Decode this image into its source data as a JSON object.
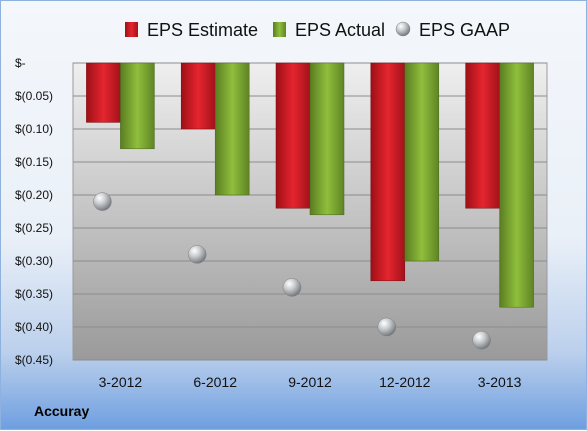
{
  "company_label": "Accuray",
  "chart_data": {
    "type": "bar",
    "categories": [
      "3-2012",
      "6-2012",
      "9-2012",
      "12-2012",
      "3-2013"
    ],
    "series": [
      {
        "name": "EPS Estimate",
        "type": "bar",
        "color": "#d7202a",
        "values": [
          -0.09,
          -0.1,
          -0.22,
          -0.33,
          -0.22
        ]
      },
      {
        "name": "EPS Actual",
        "type": "bar",
        "color": "#7fa733",
        "values": [
          -0.13,
          -0.2,
          -0.23,
          -0.3,
          -0.37
        ]
      },
      {
        "name": "EPS GAAP",
        "type": "marker",
        "color": "#b9bcbf",
        "values": [
          -0.21,
          -0.29,
          -0.34,
          -0.4,
          -0.42
        ]
      }
    ],
    "ylim": [
      -0.45,
      0
    ],
    "y_ticks": [
      0,
      -0.05,
      -0.1,
      -0.15,
      -0.2,
      -0.25,
      -0.3,
      -0.35,
      -0.4,
      -0.45
    ],
    "y_tick_labels": [
      "$-",
      "$(0.05)",
      "$(0.10)",
      "$(0.15)",
      "$(0.20)",
      "$(0.25)",
      "$(0.30)",
      "$(0.35)",
      "$(0.40)",
      "$(0.45)"
    ],
    "grid": true,
    "legend_position": "top"
  }
}
